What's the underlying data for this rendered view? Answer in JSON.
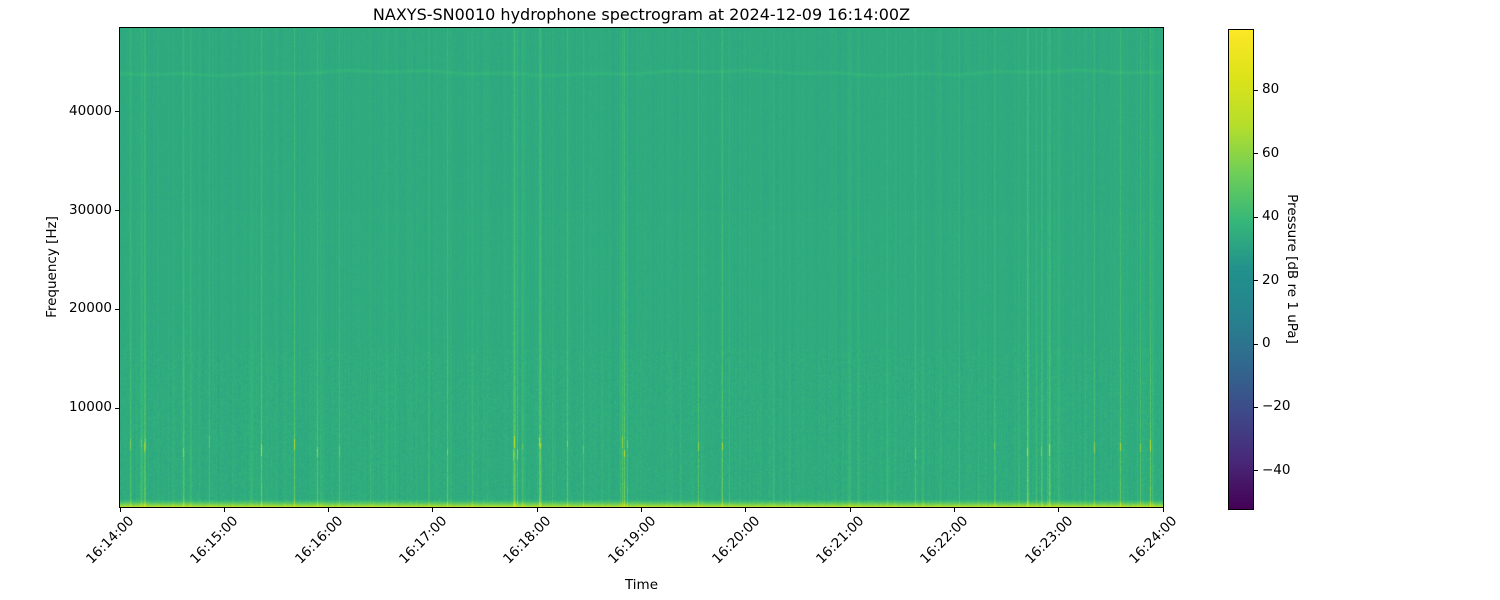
{
  "chart_data": {
    "type": "heatmap",
    "subtype": "spectrogram",
    "title": "NAXYS-SN0010 hydrophone spectrogram at 2024-12-09 16:14:00Z",
    "xlabel": "Time",
    "ylabel": "Frequency [Hz]",
    "x_tick_labels": [
      "16:14:00",
      "16:15:00",
      "16:16:00",
      "16:17:00",
      "16:18:00",
      "16:19:00",
      "16:20:00",
      "16:21:00",
      "16:22:00",
      "16:23:00",
      "16:24:00"
    ],
    "y_tick_values": [
      10000,
      20000,
      30000,
      40000
    ],
    "ylim_hz": [
      0,
      48500
    ],
    "xlim_time": [
      "16:14:00",
      "16:24:00"
    ],
    "grid": false,
    "background_color": "#ffffff",
    "colormap": "viridis",
    "colormap_stops": [
      "#440154",
      "#482878",
      "#3e4989",
      "#31688e",
      "#26828e",
      "#21918c",
      "#35b779",
      "#6ece58",
      "#b5de2b",
      "#dce319",
      "#fde725"
    ],
    "colorbar": {
      "label": "Pressure [dB re 1 uPa]",
      "tick_values": [
        80,
        60,
        40,
        20,
        0,
        -20,
        -40
      ],
      "vmin": -52,
      "vmax": 99
    },
    "features": {
      "background_level_db": 34,
      "base_color": "#2dab7e",
      "low_frequency_band": {
        "freq_max_hz": 800,
        "peak_level_db": 68
      },
      "faint_tonal_line": {
        "freq_hz": 44000,
        "level_db": 38
      },
      "click_dots_band": {
        "freq_range_hz": [
          5000,
          7000
        ],
        "peak_level_db": 72
      },
      "transients": "sporadic broadband vertical click striations across all ten minutes, strongest below ~16 kHz",
      "transient_count_approx": 95
    },
    "render": {
      "seed": 20241209,
      "pixel_noise_db": 1.1,
      "low_freq_extra_noise_db": 1.9,
      "low_freq_texture_cutoff_hz": 16000,
      "column_noise_db": 1.2
    }
  }
}
